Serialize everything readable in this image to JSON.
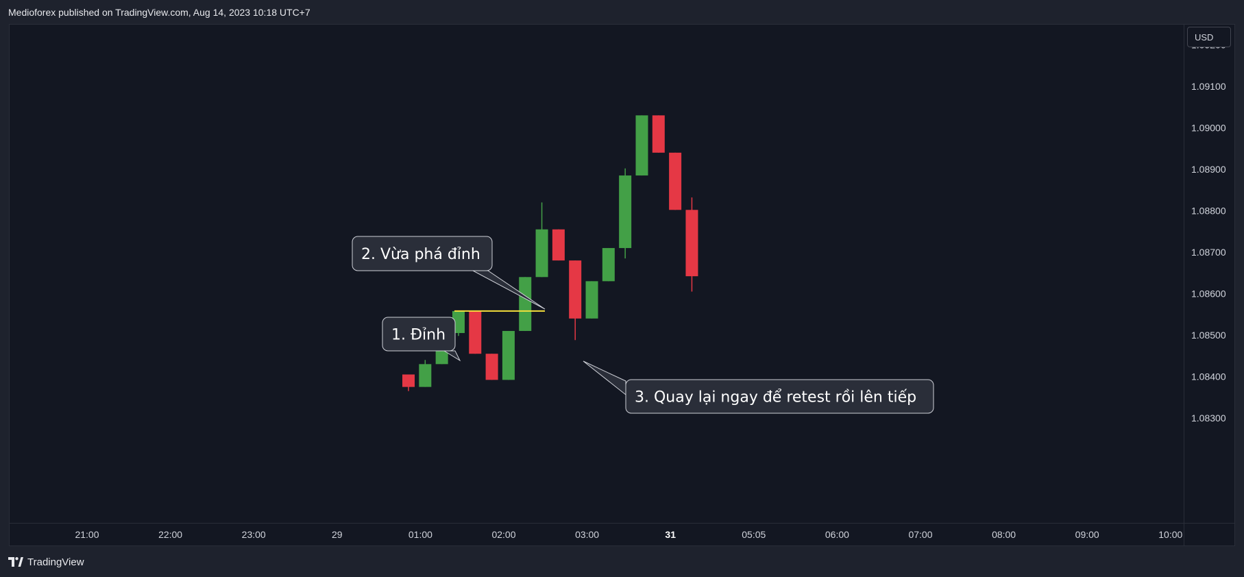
{
  "header": {
    "text": "Medioforex published on TradingView.com, Aug 14, 2023 10:18 UTC+7"
  },
  "currency": "USD",
  "footer": {
    "brand": "TradingView",
    "logo_icon": "tradingview-logo-icon"
  },
  "colors": {
    "up": "#43a047",
    "down": "#e53845",
    "level": "#f5e03b",
    "background": "#131722",
    "axis_text": "#d1d4dc"
  },
  "chart_data": {
    "type": "candlestick",
    "y_ticks": [
      "1.09200",
      "1.09100",
      "1.09000",
      "1.08900",
      "1.08800",
      "1.08700",
      "1.08600",
      "1.08500",
      "1.08400",
      "1.08300"
    ],
    "y_tick_values": [
      1.092,
      1.091,
      1.09,
      1.089,
      1.088,
      1.087,
      1.086,
      1.085,
      1.084,
      1.083
    ],
    "ylim": [
      1.0822,
      1.0925
    ],
    "x_ticks": [
      {
        "label": "21:00",
        "bold": false
      },
      {
        "label": "22:00",
        "bold": false
      },
      {
        "label": "23:00",
        "bold": false
      },
      {
        "label": "29",
        "bold": false
      },
      {
        "label": "01:00",
        "bold": false
      },
      {
        "label": "02:00",
        "bold": false
      },
      {
        "label": "03:00",
        "bold": false
      },
      {
        "label": "31",
        "bold": true
      },
      {
        "label": "05:05",
        "bold": false
      },
      {
        "label": "06:00",
        "bold": false
      },
      {
        "label": "07:00",
        "bold": false
      },
      {
        "label": "08:00",
        "bold": false
      },
      {
        "label": "09:00",
        "bold": false
      },
      {
        "label": "10:00",
        "bold": false
      }
    ],
    "candles": [
      {
        "o": 1.08405,
        "h": 1.08405,
        "l": 1.08365,
        "c": 1.08375
      },
      {
        "o": 1.08375,
        "h": 1.0844,
        "l": 1.08375,
        "c": 1.0843
      },
      {
        "o": 1.0843,
        "h": 1.08505,
        "l": 1.0843,
        "c": 1.08505
      },
      {
        "o": 1.08505,
        "h": 1.08558,
        "l": 1.08498,
        "c": 1.08558
      },
      {
        "o": 1.08558,
        "h": 1.08558,
        "l": 1.08455,
        "c": 1.08455
      },
      {
        "o": 1.08455,
        "h": 1.08455,
        "l": 1.08392,
        "c": 1.08392
      },
      {
        "o": 1.08392,
        "h": 1.0851,
        "l": 1.08392,
        "c": 1.0851
      },
      {
        "o": 1.0851,
        "h": 1.0864,
        "l": 1.0851,
        "c": 1.0864
      },
      {
        "o": 1.0864,
        "h": 1.0882,
        "l": 1.0864,
        "c": 1.08755
      },
      {
        "o": 1.08755,
        "h": 1.08755,
        "l": 1.0868,
        "c": 1.0868
      },
      {
        "o": 1.0868,
        "h": 1.0868,
        "l": 1.08488,
        "c": 1.0854
      },
      {
        "o": 1.0854,
        "h": 1.0863,
        "l": 1.0854,
        "c": 1.0863
      },
      {
        "o": 1.0863,
        "h": 1.0871,
        "l": 1.0863,
        "c": 1.0871
      },
      {
        "o": 1.0871,
        "h": 1.08902,
        "l": 1.08685,
        "c": 1.08885
      },
      {
        "o": 1.08885,
        "h": 1.0903,
        "l": 1.08885,
        "c": 1.0903
      },
      {
        "o": 1.0903,
        "h": 1.0903,
        "l": 1.0894,
        "c": 1.0894
      },
      {
        "o": 1.0894,
        "h": 1.0894,
        "l": 1.08802,
        "c": 1.08802
      },
      {
        "o": 1.08802,
        "h": 1.08832,
        "l": 1.08605,
        "c": 1.08642
      }
    ],
    "level_line": {
      "value": 1.08558
    },
    "annotations": [
      {
        "text": "1. Đỉnh"
      },
      {
        "text": "2. Vừa phá đỉnh"
      },
      {
        "text": "3. Quay lại ngay để retest rồi lên tiếp"
      }
    ]
  }
}
